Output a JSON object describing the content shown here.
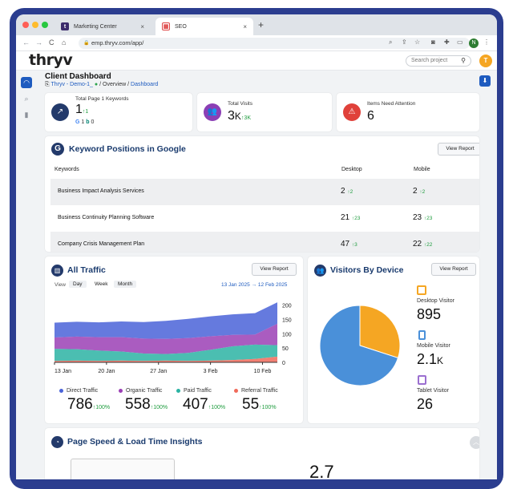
{
  "browser": {
    "tabs": [
      {
        "label": "Marketing Center",
        "close": "×"
      },
      {
        "label": "SEO",
        "close": "×"
      }
    ],
    "new_tab": "+",
    "nav_back": "←",
    "nav_forward": "→",
    "nav_reload": "C",
    "nav_home": "⌂",
    "url": "emp.thryv.com/app/",
    "profile_initial": "N"
  },
  "app": {
    "logo": "thryv",
    "search_placeholder": "Search project",
    "user_initial": "T"
  },
  "page": {
    "title": "Client Dashboard",
    "breadcrumb": {
      "project": "Thryv - Demo-1_",
      "sep1": "/",
      "overview": "Overview",
      "sep2": "/",
      "current": "Dashboard"
    }
  },
  "kpis": {
    "keywords": {
      "label": "Total Page 1 Keywords",
      "value": "1",
      "delta": "1",
      "google": "1",
      "bing": "0"
    },
    "visits": {
      "label": "Total Visits",
      "value": "3",
      "unit": "K",
      "delta": "3K"
    },
    "attention": {
      "label": "Items Need Attention",
      "value": "6"
    }
  },
  "keyword_positions": {
    "title": "Keyword Positions in Google",
    "view_report": "View Report",
    "columns": [
      "Keywords",
      "Desktop",
      "Mobile"
    ],
    "rows": [
      {
        "keyword": "Business Impact Analysis Services",
        "desktop": "2",
        "desktop_delta": "2",
        "mobile": "2",
        "mobile_delta": "2"
      },
      {
        "keyword": "Business Continuity Planning Software",
        "desktop": "21",
        "desktop_delta": "23",
        "mobile": "23",
        "mobile_delta": "23"
      },
      {
        "keyword": "Company Crisis Management Plan",
        "desktop": "47",
        "desktop_delta": "3",
        "mobile": "22",
        "mobile_delta": "22"
      }
    ]
  },
  "traffic": {
    "title": "All Traffic",
    "view_report": "View Report",
    "view_label": "View",
    "view_options": [
      "Day",
      "Week",
      "Month"
    ],
    "date_from": "13 Jan 2025",
    "date_arrow": "→",
    "date_to": "12 Feb 2025",
    "legend": [
      {
        "name": "Direct Traffic",
        "value": "786",
        "delta": "100%",
        "color": "#4a63d8"
      },
      {
        "name": "Organic Traffic",
        "value": "558",
        "delta": "100%",
        "color": "#9b3fb5"
      },
      {
        "name": "Paid Traffic",
        "value": "407",
        "delta": "100%",
        "color": "#2bb3a3"
      },
      {
        "name": "Referral Traffic",
        "value": "55",
        "delta": "100%",
        "color": "#f06a5a"
      }
    ]
  },
  "chart_data": {
    "type": "area",
    "x": [
      "13 Jan",
      "20 Jan",
      "27 Jan",
      "3 Feb",
      "10 Feb"
    ],
    "xlim": [
      "13 Jan",
      "12 Feb"
    ],
    "ylim": [
      0,
      230
    ],
    "yticks": [
      "0",
      "50",
      "100",
      "150",
      "200"
    ],
    "stacked": true,
    "series": [
      {
        "name": "Referral Traffic",
        "color": "#f06a5a",
        "values": [
          [
            0,
            5
          ],
          [
            3,
            6
          ],
          [
            6,
            5
          ],
          [
            9,
            6
          ],
          [
            12,
            5
          ],
          [
            15,
            6
          ],
          [
            18,
            5
          ],
          [
            21,
            6
          ],
          [
            24,
            8
          ],
          [
            27,
            12
          ],
          [
            30,
            20
          ]
        ]
      },
      {
        "name": "Paid Traffic",
        "color": "#2bb3a3",
        "values": [
          [
            0,
            42
          ],
          [
            3,
            40
          ],
          [
            6,
            36
          ],
          [
            9,
            32
          ],
          [
            12,
            26
          ],
          [
            15,
            23
          ],
          [
            18,
            28
          ],
          [
            21,
            38
          ],
          [
            24,
            48
          ],
          [
            27,
            50
          ],
          [
            30,
            40
          ]
        ]
      },
      {
        "name": "Organic Traffic",
        "color": "#9b3fb5",
        "values": [
          [
            0,
            40
          ],
          [
            3,
            44
          ],
          [
            6,
            47
          ],
          [
            9,
            50
          ],
          [
            12,
            52
          ],
          [
            15,
            53
          ],
          [
            18,
            52
          ],
          [
            21,
            47
          ],
          [
            24,
            40
          ],
          [
            27,
            35
          ],
          [
            30,
            75
          ]
        ]
      },
      {
        "name": "Direct Traffic",
        "color": "#4a63d8",
        "values": [
          [
            0,
            52
          ],
          [
            3,
            52
          ],
          [
            6,
            52
          ],
          [
            9,
            55
          ],
          [
            12,
            58
          ],
          [
            15,
            63
          ],
          [
            18,
            67
          ],
          [
            21,
            70
          ],
          [
            24,
            72
          ],
          [
            27,
            75
          ],
          [
            30,
            75
          ]
        ]
      }
    ]
  },
  "devices": {
    "title": "Visitors By Device",
    "view_report": "View Report",
    "items": [
      {
        "name": "Desktop Visitor",
        "value": "895",
        "color": "#f5a623"
      },
      {
        "name": "Mobile Visitor",
        "value": "2.1",
        "unit": "K",
        "color": "#4a90d9"
      },
      {
        "name": "Tablet Visitor",
        "value": "26",
        "color": "#9b6fd0"
      }
    ],
    "pie": [
      {
        "name": "Mobile Visitor",
        "fraction": 0.7,
        "color": "#4a90d9"
      },
      {
        "name": "Desktop Visitor",
        "fraction": 0.3,
        "color": "#f5a623"
      }
    ]
  },
  "pagespeed": {
    "title": "Page Speed & Load Time Insights",
    "partial_value": "2.7"
  }
}
